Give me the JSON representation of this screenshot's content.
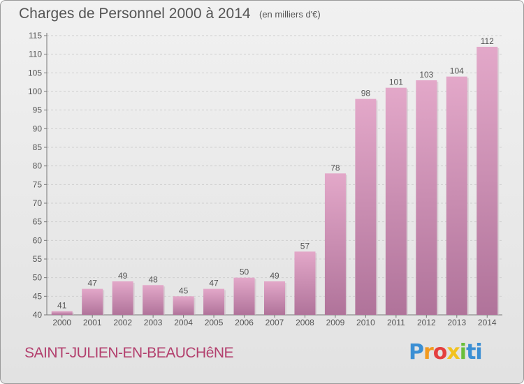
{
  "header": {
    "title": "Charges de Personnel 2000 à 2014",
    "unit": "(en milliers d'€)"
  },
  "footer": {
    "commune": "SAINT-JULIEN-EN-BEAUCHêNE",
    "logo": [
      "P",
      "r",
      "o",
      "x",
      "i",
      "ti"
    ]
  },
  "colors": {
    "bar_light": "#e3a8c9",
    "bar_dark": "#b0739a",
    "commune": "#b3406e"
  },
  "chart_data": {
    "type": "bar",
    "title": "Charges de Personnel 2000 à 2014",
    "subtitle": "(en milliers d'€)",
    "categories": [
      "2000",
      "2001",
      "2002",
      "2003",
      "2004",
      "2005",
      "2006",
      "2007",
      "2008",
      "2009",
      "2010",
      "2011",
      "2012",
      "2013",
      "2014"
    ],
    "values": [
      41,
      47,
      49,
      48,
      45,
      47,
      50,
      49,
      57,
      78,
      98,
      101,
      103,
      104,
      112
    ],
    "ylim": [
      40,
      115
    ],
    "yticks": [
      40,
      45,
      50,
      55,
      60,
      65,
      70,
      75,
      80,
      85,
      90,
      95,
      100,
      105,
      110,
      115
    ],
    "grid": true,
    "data_labels": true
  }
}
